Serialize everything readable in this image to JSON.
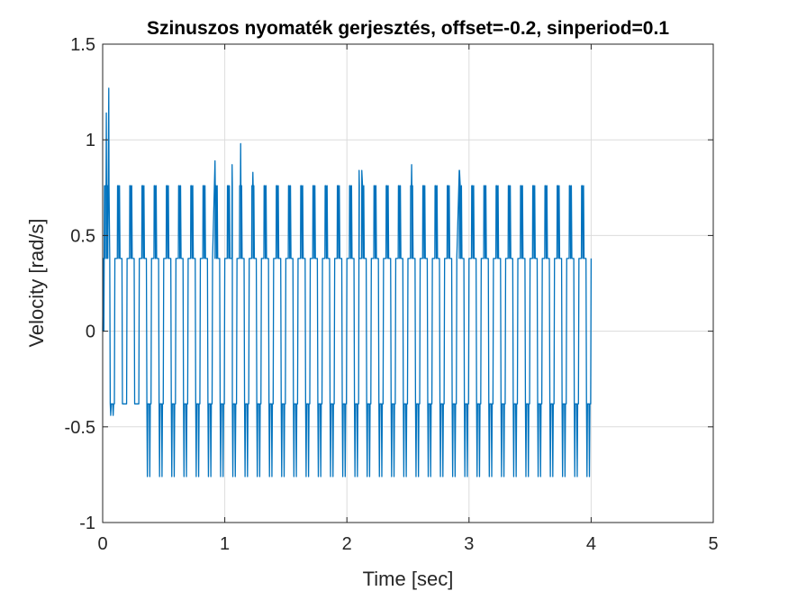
{
  "chart_data": {
    "type": "line",
    "title": "Szinuszos nyomaték gerjesztés, offset=-0.2, sinperiod=0.1",
    "xlabel": "Time [sec]",
    "ylabel": "Velocity [rad/s]",
    "xlim": [
      0,
      5
    ],
    "ylim": [
      -1,
      1.5
    ],
    "xticks": [
      0,
      1,
      2,
      3,
      4,
      5
    ],
    "yticks": [
      -1,
      -0.5,
      0,
      0.5,
      1,
      1.5
    ],
    "xtick_labels": [
      "0",
      "1",
      "2",
      "3",
      "4",
      "5"
    ],
    "ytick_labels": [
      "-1",
      "-0.5",
      "0",
      "0.5",
      "1",
      "1.5"
    ],
    "grid": true,
    "legend": "none",
    "line_color": "#0072BD",
    "signal": {
      "description_of_series": "periodic quantized velocity oscillation",
      "t_start": 0,
      "t_end": 4,
      "period": 0.1,
      "levels": [
        0.76,
        0.38,
        -0.38,
        -0.76
      ],
      "positive_spikes": [
        {
          "t": 0.03,
          "v": 1.14
        },
        {
          "t": 0.05,
          "v": 1.27
        },
        {
          "t": 0.92,
          "v": 0.89
        },
        {
          "t": 1.06,
          "v": 0.87
        },
        {
          "t": 1.13,
          "v": 0.98
        },
        {
          "t": 1.23,
          "v": 0.83
        },
        {
          "t": 2.1,
          "v": 0.84
        },
        {
          "t": 2.53,
          "v": 0.87
        },
        {
          "t": 2.92,
          "v": 0.84
        }
      ]
    }
  }
}
